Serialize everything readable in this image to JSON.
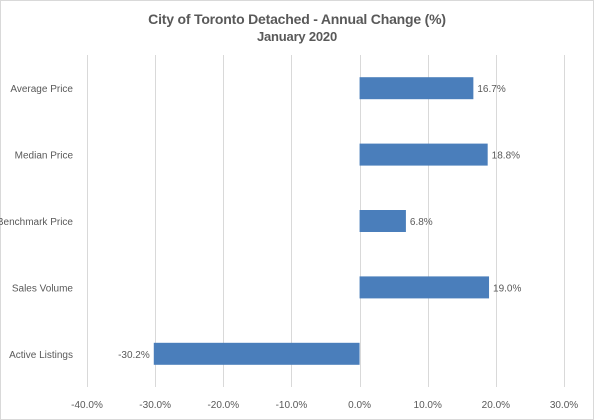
{
  "chart_data": {
    "type": "bar",
    "orientation": "horizontal",
    "title": "City of Toronto Detached - Annual Change (%)",
    "subtitle": "January 2020",
    "categories": [
      "Average Price",
      "Median Price",
      "Benchmark Price",
      "Sales Volume",
      "Active Listings"
    ],
    "values": [
      16.7,
      18.8,
      6.8,
      19.0,
      -30.2
    ],
    "value_labels": [
      "16.7%",
      "18.8%",
      "6.8%",
      "19.0%",
      "-30.2%"
    ],
    "xlim": [
      -40,
      30
    ],
    "xticks": [
      -40,
      -30,
      -20,
      -10,
      0,
      10,
      20,
      30
    ],
    "xtick_labels": [
      "-40.0%",
      "-30.0%",
      "-20.0%",
      "-10.0%",
      "0.0%",
      "10.0%",
      "20.0%",
      "30.0%"
    ],
    "grid": "vertical",
    "legend": "none",
    "bar_color": "#4a7ebb",
    "grid_color": "#d9d9d9"
  }
}
